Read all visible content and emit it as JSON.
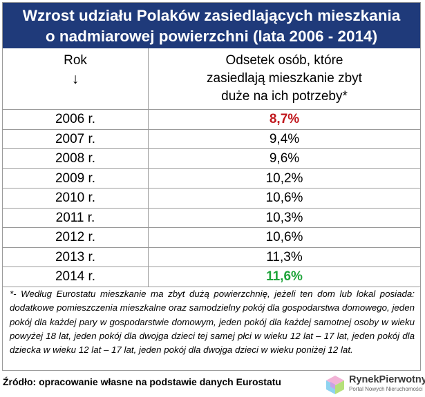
{
  "title_line1": "Wzrost udziału Polaków zasiedlających mieszkania",
  "title_line2": "o nadmiarowej powierzchni (lata 2006 - 2014)",
  "header": {
    "year": "Rok",
    "arrow": "↓",
    "value_line1": "Odsetek osób, które",
    "value_line2": "zasiedlają mieszkanie zbyt",
    "value_line3": "duże na ich potrzeby*"
  },
  "chart_data": {
    "type": "table",
    "columns": [
      "Rok",
      "Odsetek osób, które zasiedlają mieszkanie zbyt duże na ich potrzeby*"
    ],
    "rows": [
      {
        "year": "2006 r.",
        "value": "8,7%",
        "highlight": "min"
      },
      {
        "year": "2007 r.",
        "value": "9,4%"
      },
      {
        "year": "2008 r.",
        "value": "9,6%"
      },
      {
        "year": "2009 r.",
        "value": "10,2%"
      },
      {
        "year": "2010 r.",
        "value": "10,6%"
      },
      {
        "year": "2011 r.",
        "value": "10,3%"
      },
      {
        "year": "2012 r.",
        "value": "10,6%"
      },
      {
        "year": "2013 r.",
        "value": "11,3%"
      },
      {
        "year": "2014 r.",
        "value": "11,6%",
        "highlight": "max"
      }
    ]
  },
  "colors": {
    "title_bg": "#1f3a7a",
    "min": "#c0161c",
    "max": "#1ea43a"
  },
  "note": "*- Według Eurostatu mieszkanie ma zbyt dużą powierzchnię, jeżeli ten dom lub lokal posiada: dodatkowe pomieszczenia mieszkalne oraz samodzielny pokój dla gospodarstwa domowego, jeden pokój dla każdej pary w gospodarstwie domowym, jeden pokój dla każdej samotnej osoby w wieku powyżej 18 lat, jeden pokój dla dwojga dzieci tej samej płci w wieku 12 lat – 17 lat, jeden pokój dla dziecka w wieku 12 lat – 17 lat, jeden pokój dla dwojga dzieci w wieku poniżej 12 lat.",
  "source": "Źródło: opracowanie własne na podstawie danych Eurostatu",
  "logo": {
    "name": "RynekPierwotny",
    "tagline": "Portal Nowych Nieruchomości"
  }
}
